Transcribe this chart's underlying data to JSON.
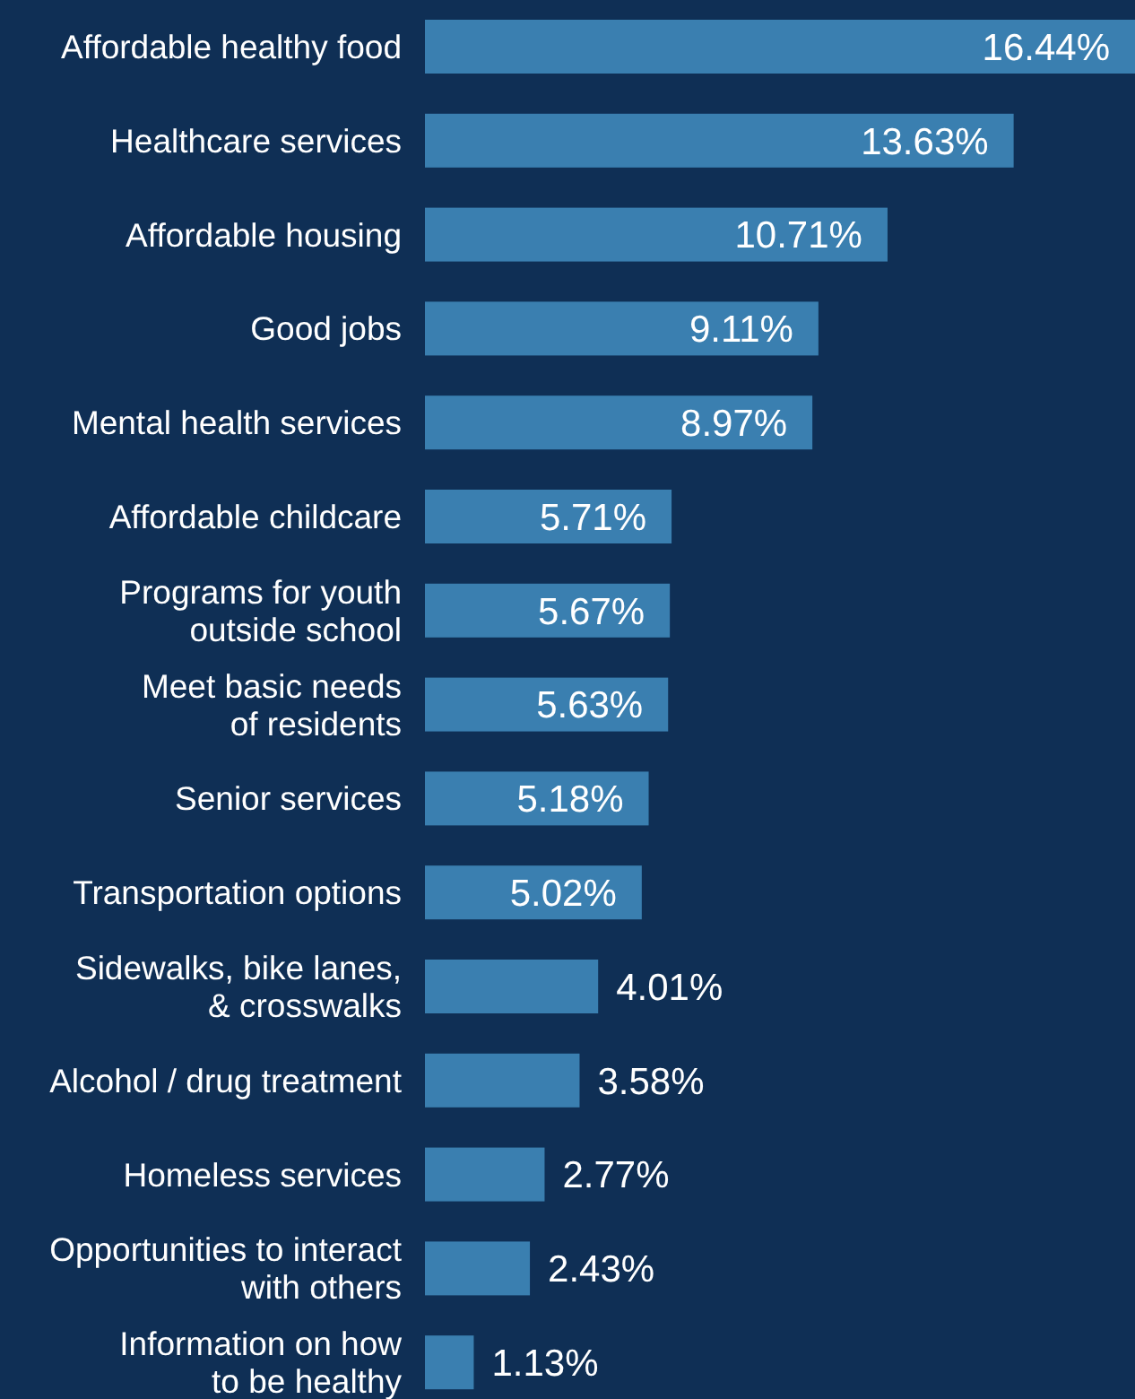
{
  "chart_data": {
    "type": "bar",
    "orientation": "horizontal",
    "categories": [
      "Affordable healthy food",
      "Healthcare services",
      "Affordable housing",
      "Good jobs",
      "Mental health services",
      "Affordable childcare",
      "Programs for youth\noutside school",
      "Meet basic needs\nof residents",
      "Senior services",
      "Transportation options",
      "Sidewalks, bike lanes,\n& crosswalks",
      "Alcohol / drug treatment",
      "Homeless services",
      "Opportunities to interact\nwith others",
      "Information on how\nto be healthy"
    ],
    "values": [
      16.44,
      13.63,
      10.71,
      9.11,
      8.97,
      5.71,
      5.67,
      5.63,
      5.18,
      5.02,
      4.01,
      3.58,
      2.77,
      2.43,
      1.13
    ],
    "value_labels": [
      "16.44%",
      "13.63%",
      "10.71%",
      "9.11%",
      "8.97%",
      "5.71%",
      "5.67%",
      "5.63%",
      "5.18%",
      "5.02%",
      "4.01%",
      "3.58%",
      "2.77%",
      "2.43%",
      "1.13%"
    ],
    "color": "#3a7fb0"
  }
}
